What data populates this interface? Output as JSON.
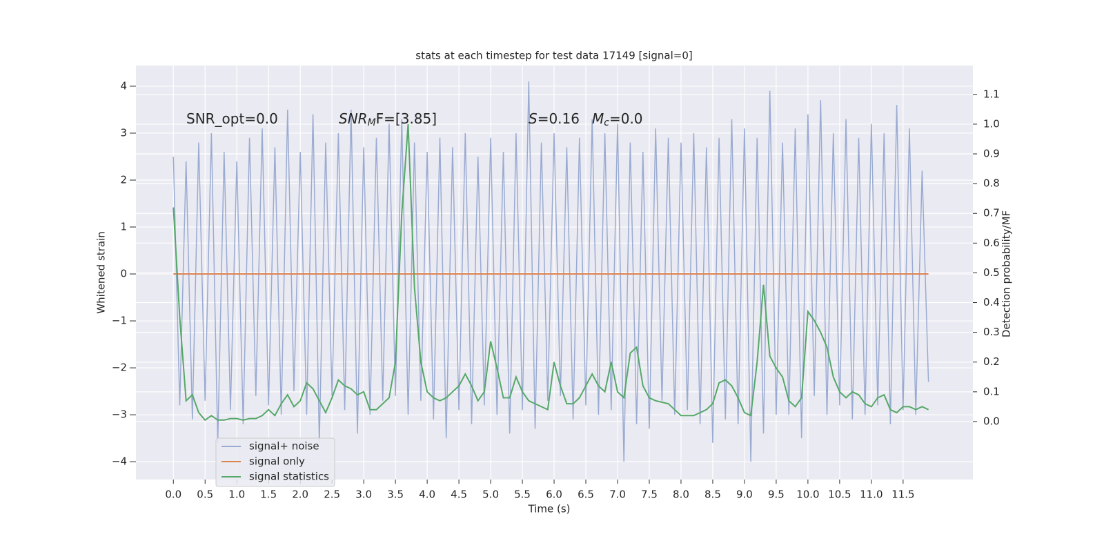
{
  "chart_data": {
    "type": "line",
    "title": "stats at each timestep for test data 17149 [signal=0]",
    "xlabel": "Time (s)",
    "ylabel": "Whitened strain",
    "y2label": "Detection probability/MF",
    "grid": true,
    "legend": "lower left",
    "xlim": [
      -0.59,
      12.6
    ],
    "ylim": [
      -4.38,
      4.44
    ],
    "y2lim": [
      -0.195,
      1.197
    ],
    "xticks": [
      {
        "value": 0,
        "label": "0.0"
      },
      0.5,
      {
        "value": 1,
        "label": "1.0"
      },
      1.5,
      {
        "value": 2,
        "label": "2.0"
      },
      2.5,
      {
        "value": 3,
        "label": "3.0"
      },
      3.5,
      {
        "value": 4,
        "label": "4.0"
      },
      4.5,
      {
        "value": 5,
        "label": "5.0"
      },
      5.5,
      {
        "value": 6,
        "label": "6.0"
      },
      6.5,
      {
        "value": 7,
        "label": "7.0"
      },
      7.5,
      {
        "value": 8,
        "label": "8.0"
      },
      8.5,
      {
        "value": 9,
        "label": "9.0"
      },
      9.5,
      {
        "value": 10,
        "label": "10.0"
      },
      10.5,
      {
        "value": 11,
        "label": "11.0"
      },
      11.5
    ],
    "yticks": [
      {
        "value": -4,
        "label": "−4"
      },
      {
        "value": -3,
        "label": "−3"
      },
      {
        "value": -2,
        "label": "−2"
      },
      {
        "value": -1,
        "label": "−1"
      },
      0,
      1,
      2,
      3,
      4
    ],
    "y2ticks": [
      {
        "value": 0,
        "label": "0.0"
      },
      0.1,
      0.2,
      0.3,
      0.4,
      0.5,
      0.6,
      0.7,
      0.8,
      0.9,
      {
        "value": 1,
        "label": "1.0"
      },
      1.1
    ],
    "annotations": [
      {
        "main": "SNR_opt=0.0"
      },
      {
        "main": "SNR",
        "sub": "M",
        "rest": "F=[3.85]"
      },
      {
        "main": "S",
        "rest": "=0.16"
      },
      {
        "main": "M",
        "sub": "c",
        "rest": "=0.0"
      }
    ],
    "x": [
      0.0,
      0.1,
      0.2,
      0.3,
      0.4,
      0.5,
      0.6,
      0.7,
      0.8,
      0.9,
      1.0,
      1.1,
      1.2,
      1.3,
      1.4,
      1.5,
      1.6,
      1.7,
      1.8,
      1.9,
      2.0,
      2.1,
      2.2,
      2.3,
      2.4,
      2.5,
      2.6,
      2.7,
      2.8,
      2.9,
      3.0,
      3.1,
      3.2,
      3.3,
      3.4,
      3.5,
      3.6,
      3.7,
      3.8,
      3.9,
      4.0,
      4.1,
      4.2,
      4.3,
      4.4,
      4.5,
      4.6,
      4.7,
      4.8,
      4.9,
      5.0,
      5.1,
      5.2,
      5.3,
      5.4,
      5.5,
      5.6,
      5.7,
      5.8,
      5.9,
      6.0,
      6.1,
      6.2,
      6.3,
      6.4,
      6.5,
      6.6,
      6.7,
      6.8,
      6.9,
      7.0,
      7.1,
      7.2,
      7.3,
      7.4,
      7.5,
      7.6,
      7.7,
      7.8,
      7.9,
      8.0,
      8.1,
      8.2,
      8.3,
      8.4,
      8.5,
      8.6,
      8.7,
      8.8,
      8.9,
      9.0,
      9.1,
      9.2,
      9.3,
      9.4,
      9.5,
      9.6,
      9.7,
      9.8,
      9.9,
      10.0,
      10.1,
      10.2,
      10.3,
      10.4,
      10.5,
      10.6,
      10.7,
      10.8,
      10.9,
      11.0,
      11.1,
      11.2,
      11.3,
      11.4,
      11.5,
      11.6,
      11.7,
      11.8,
      11.9
    ],
    "series": [
      {
        "name": "signal+ noise",
        "color": "#9aabd1",
        "values": [
          2.5,
          -2.8,
          2.4,
          -3.1,
          2.8,
          -2.7,
          3.0,
          -3.6,
          2.6,
          -2.9,
          2.4,
          -3.2,
          2.9,
          -2.6,
          3.1,
          -2.8,
          2.7,
          -3.0,
          3.5,
          -2.5,
          2.6,
          -3.0,
          3.4,
          -3.6,
          2.8,
          -2.6,
          3.0,
          -2.9,
          3.5,
          -3.4,
          2.7,
          -3.0,
          2.9,
          -2.7,
          3.2,
          -2.6,
          3.3,
          -3.0,
          2.8,
          -2.7,
          2.6,
          -3.1,
          2.9,
          -3.5,
          2.7,
          -2.9,
          3.0,
          -3.2,
          2.5,
          -2.8,
          2.9,
          -3.0,
          2.6,
          -3.4,
          3.0,
          -2.9,
          4.1,
          -3.3,
          2.8,
          -2.7,
          3.0,
          -2.6,
          2.7,
          -3.1,
          2.9,
          -2.8,
          3.3,
          -3.0,
          3.0,
          -2.9,
          3.2,
          -4.0,
          2.8,
          -3.2,
          2.6,
          -3.3,
          3.1,
          -2.7,
          2.9,
          -3.0,
          2.8,
          -2.9,
          3.0,
          -3.2,
          2.7,
          -3.6,
          2.9,
          -3.1,
          3.3,
          -3.2,
          3.1,
          -4.0,
          2.9,
          -3.4,
          3.9,
          -3.0,
          2.8,
          -3.0,
          3.1,
          -3.5,
          3.4,
          -2.6,
          3.7,
          -3.0,
          3.0,
          -2.8,
          3.3,
          -3.1,
          2.9,
          -3.0,
          3.2,
          -2.8,
          3.0,
          -3.2,
          3.6,
          -2.9,
          3.1,
          -3.0,
          2.2,
          -2.3
        ]
      },
      {
        "name": "signal only",
        "color": "#dd8452",
        "x": [
          0.0,
          11.9
        ],
        "values": [
          0,
          0
        ]
      },
      {
        "name": "signal statistics",
        "color": "#55a868",
        "axis": "y2",
        "values": [
          0.72,
          0.35,
          0.07,
          0.09,
          0.03,
          0.005,
          0.02,
          0.005,
          0.005,
          0.01,
          0.01,
          0.005,
          0.01,
          0.01,
          0.02,
          0.04,
          0.02,
          0.06,
          0.09,
          0.05,
          0.07,
          0.13,
          0.11,
          0.07,
          0.03,
          0.08,
          0.14,
          0.12,
          0.11,
          0.09,
          0.1,
          0.04,
          0.04,
          0.06,
          0.08,
          0.2,
          0.7,
          1.0,
          0.45,
          0.2,
          0.1,
          0.08,
          0.07,
          0.08,
          0.1,
          0.12,
          0.16,
          0.12,
          0.07,
          0.1,
          0.27,
          0.18,
          0.08,
          0.08,
          0.15,
          0.1,
          0.07,
          0.06,
          0.05,
          0.04,
          0.2,
          0.12,
          0.06,
          0.06,
          0.08,
          0.12,
          0.16,
          0.12,
          0.1,
          0.2,
          0.1,
          0.08,
          0.23,
          0.25,
          0.12,
          0.08,
          0.07,
          0.065,
          0.06,
          0.04,
          0.02,
          0.02,
          0.02,
          0.03,
          0.04,
          0.06,
          0.13,
          0.14,
          0.12,
          0.08,
          0.03,
          0.02,
          0.2,
          0.46,
          0.22,
          0.18,
          0.15,
          0.07,
          0.05,
          0.08,
          0.37,
          0.34,
          0.3,
          0.25,
          0.15,
          0.1,
          0.08,
          0.1,
          0.09,
          0.06,
          0.05,
          0.08,
          0.09,
          0.04,
          0.03,
          0.05,
          0.05,
          0.04,
          0.05,
          0.04
        ]
      }
    ]
  }
}
